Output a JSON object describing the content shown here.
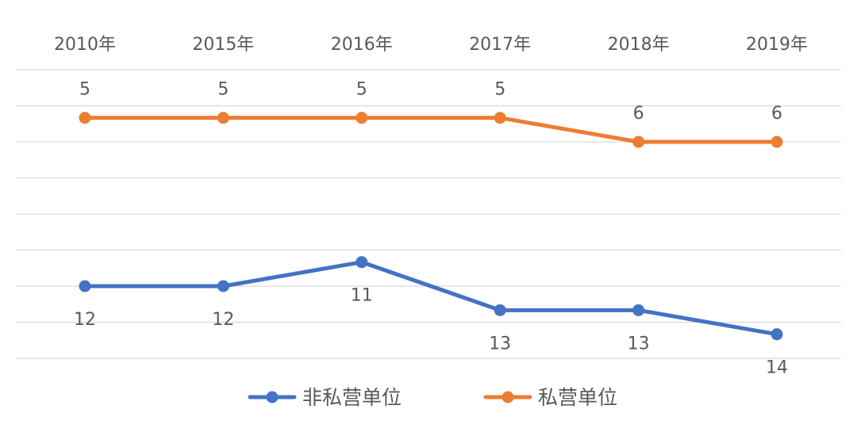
{
  "chart_data": {
    "type": "line",
    "y_axis_reversed": true,
    "ylim": [
      3,
      15
    ],
    "grid": true,
    "x_axis_position": "top",
    "legend_position": "bottom",
    "categories": [
      "2010年",
      "2015年",
      "2016年",
      "2017年",
      "2018年",
      "2019年"
    ],
    "series": [
      {
        "name": "非私营单位",
        "color": "#4472C4",
        "values": [
          12,
          12,
          11,
          13,
          13,
          14
        ],
        "label_position": "below"
      },
      {
        "name": "私营单位",
        "color": "#ED7D31",
        "values": [
          5,
          5,
          5,
          5,
          6,
          6
        ],
        "label_position": "above"
      }
    ]
  }
}
